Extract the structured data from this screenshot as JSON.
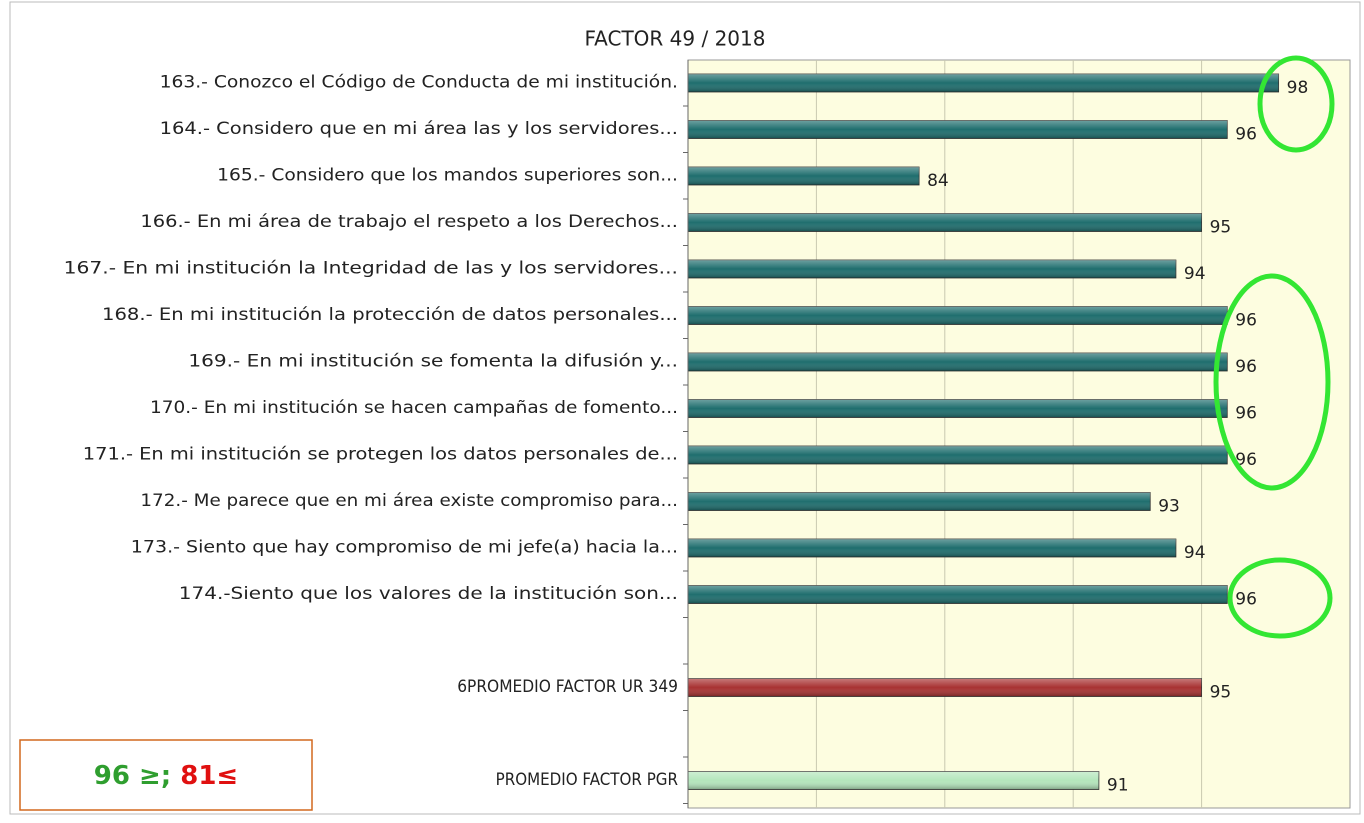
{
  "chart_data": {
    "type": "bar",
    "orientation": "horizontal",
    "title": "FACTOR 49 / 2018",
    "categories": [
      "163.- Conozco el Código de Conducta de mi institución.",
      "164.- Considero que en mi área las y los servidores...",
      "165.- Considero que los mandos superiores son...",
      "166.- En mi área de trabajo el respeto a los Derechos...",
      "167.- En mi institución la Integridad de las y los servidores...",
      "168.- En mi institución la protección de datos personales...",
      "169.- En mi institución se fomenta la difusión y...",
      "170.- En mi institución se hacen campañas de fomento...",
      "171.- En mi institución se protegen los datos personales de...",
      "172.- Me parece que en mi área existe compromiso para...",
      "173.- Siento que hay compromiso de mi jefe(a) hacia la...",
      "174.-Siento que los valores de la institución son...",
      null,
      "6PROMEDIO FACTOR UR 349",
      null,
      "PROMEDIO FACTOR PGR"
    ],
    "values": [
      98,
      96,
      84,
      95,
      94,
      96,
      96,
      96,
      96,
      93,
      94,
      96,
      null,
      95,
      null,
      91
    ],
    "colors": [
      "#1f6e6e",
      "#1f6e6e",
      "#1f6e6e",
      "#1f6e6e",
      "#1f6e6e",
      "#1f6e6e",
      "#1f6e6e",
      "#1f6e6e",
      "#1f6e6e",
      "#1f6e6e",
      "#1f6e6e",
      "#1f6e6e",
      null,
      "#a83232",
      null,
      "#b4e6bc"
    ],
    "xlim": [
      75,
      100
    ],
    "xticks": [
      80,
      85,
      90,
      95
    ],
    "grid": true,
    "annotations": [
      {
        "text": "96 ≥;",
        "color": "#2f9e2f"
      },
      {
        "text": "81≤",
        "color": "#e01010"
      }
    ]
  }
}
